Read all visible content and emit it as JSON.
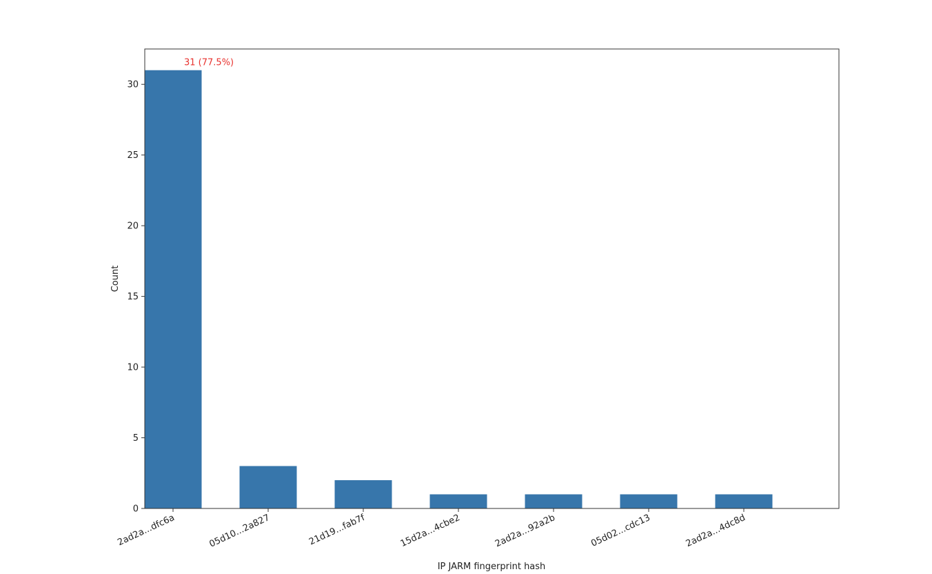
{
  "chart_data": {
    "type": "bar",
    "categories": [
      "2ad2a...dfc6a",
      "05d10...2a827",
      "21d19...fab7f",
      "15d2a...4cbe2",
      "2ad2a...92a2b",
      "05d02...cdc13",
      "2ad2a...4dc8d"
    ],
    "values": [
      31,
      3,
      2,
      1,
      1,
      1,
      1
    ],
    "title": "",
    "xlabel": "IP JARM fingerprint hash",
    "ylabel": "Count",
    "ylim": [
      0,
      32.5
    ],
    "yticks": [
      0,
      5,
      10,
      15,
      20,
      25,
      30
    ],
    "grid": false,
    "bar_color": "#3776ab",
    "annotation": {
      "category_index": 0,
      "text": "31 (77.5%)",
      "color": "#e8322e"
    }
  }
}
